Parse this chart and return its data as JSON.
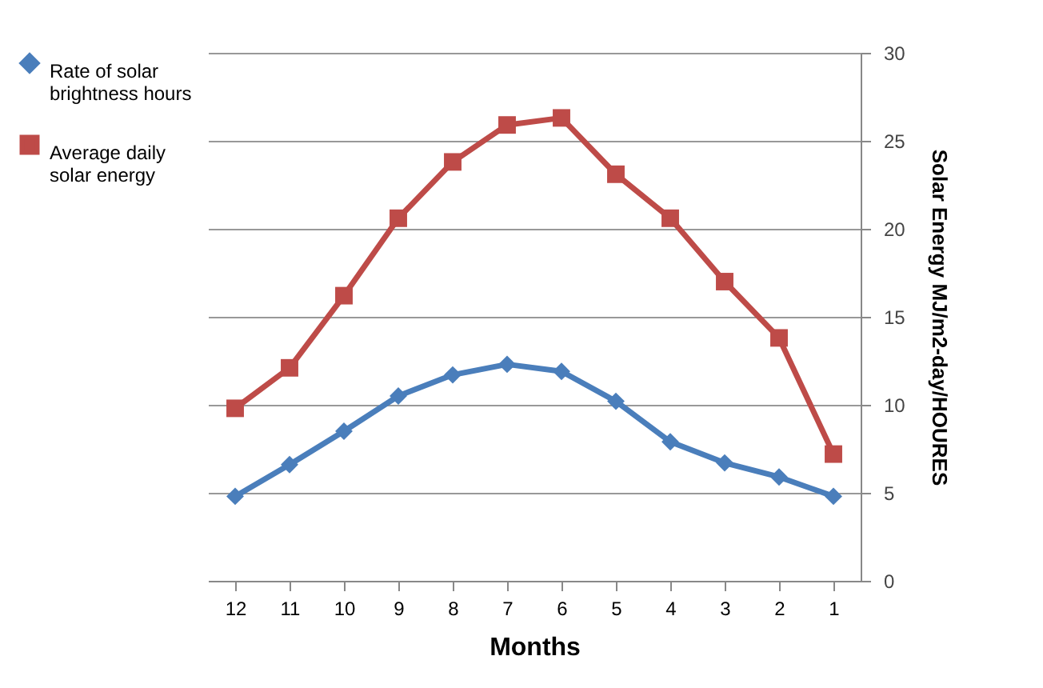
{
  "chart_data": {
    "type": "line",
    "xlabel": "Months",
    "ylabel": "Solar Energy MJ/m2-day/HOURES",
    "categories": [
      "12",
      "11",
      "10",
      "9",
      "8",
      "7",
      "6",
      "5",
      "4",
      "3",
      "2",
      "1"
    ],
    "series": [
      {
        "name": "Rate of solar brightness hours",
        "color": "#4a7ebb",
        "marker": "diamond",
        "values": [
          4.8,
          6.6,
          8.5,
          10.5,
          11.7,
          12.3,
          11.9,
          10.2,
          7.9,
          6.7,
          5.9,
          4.8
        ]
      },
      {
        "name": "Average daily solar energy",
        "color": "#be4b48",
        "marker": "square",
        "values": [
          9.8,
          12.1,
          16.2,
          20.6,
          23.8,
          25.9,
          26.3,
          23.1,
          20.6,
          17.0,
          13.8,
          7.2
        ]
      }
    ],
    "ylim": [
      0,
      30
    ],
    "yticks": [
      0,
      5,
      10,
      15,
      20,
      25,
      30
    ],
    "grid": "y",
    "legend": "left",
    "line_style": "solid"
  }
}
